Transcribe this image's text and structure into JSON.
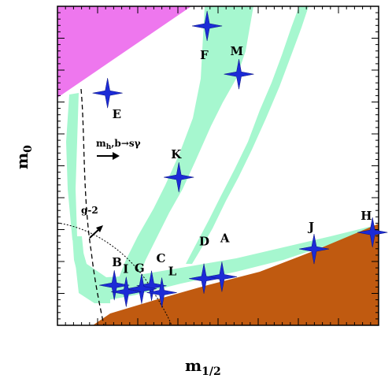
{
  "chart_data": {
    "type": "scatter",
    "title": "",
    "xlabel": "m₁/₂",
    "ylabel": "m₀",
    "xlabel_main": "m",
    "xlabel_sub": "1/2",
    "ylabel_main": "m",
    "ylabel_sub": "0",
    "grid": false,
    "legend": "none",
    "colors": {
      "excluded_top": "#ee77ee",
      "excluded_bottom": "#c05a10",
      "allowed_band": "#a6f7cf",
      "benchmark_star": "#1c2bd6",
      "text": "#000000"
    },
    "regions": [
      {
        "name": "pink-excluded-region",
        "color": "#ee77ee"
      },
      {
        "name": "orange-excluded-region",
        "color": "#c05a10"
      },
      {
        "name": "green-allowed-band",
        "color": "#a6f7cf"
      }
    ],
    "points": [
      {
        "label": "A",
        "x": 0.512,
        "y": 0.19
      },
      {
        "label": "B",
        "x": 0.177,
        "y": 0.157
      },
      {
        "label": "C",
        "x": 0.293,
        "y": 0.155
      },
      {
        "label": "D",
        "x": 0.456,
        "y": 0.183
      },
      {
        "label": "E",
        "x": 0.156,
        "y": 0.91
      },
      {
        "label": "F",
        "x": 0.466,
        "y": 1.173
      },
      {
        "label": "G",
        "x": 0.262,
        "y": 0.143
      },
      {
        "label": "H",
        "x": 0.981,
        "y": 0.364
      },
      {
        "label": "I",
        "x": 0.214,
        "y": 0.131
      },
      {
        "label": "J",
        "x": 0.799,
        "y": 0.299
      },
      {
        "label": "K",
        "x": 0.378,
        "y": 0.58
      },
      {
        "label": "L",
        "x": 0.325,
        "y": 0.128
      },
      {
        "label": "M",
        "x": 0.565,
        "y": 0.984
      }
    ],
    "annotations": [
      {
        "text_main": "m",
        "text_sub": "h",
        "text_rest": ",b→sγ"
      },
      {
        "text": "g-2"
      }
    ]
  }
}
